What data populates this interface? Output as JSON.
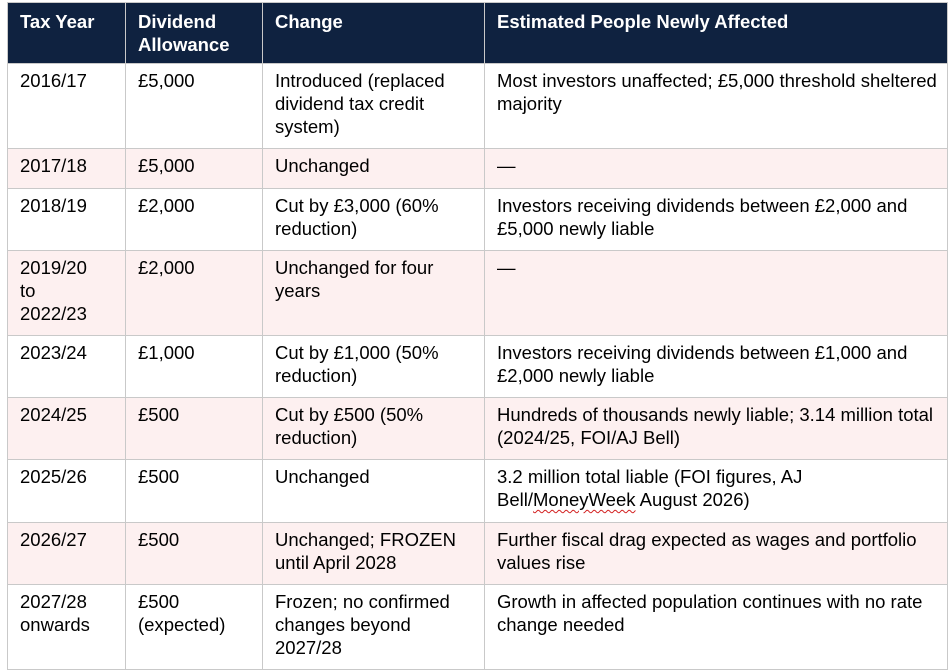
{
  "table": {
    "headers": [
      "Tax Year",
      "Dividend Allowance",
      "Change",
      "Estimated People Newly Affected"
    ],
    "rows": [
      {
        "tax_year": "2016/17",
        "allowance": "£5,000",
        "change": "Introduced (replaced dividend tax credit system)",
        "affected": "Most investors unaffected; £5,000 threshold sheltered majority"
      },
      {
        "tax_year": "2017/18",
        "allowance": "£5,000",
        "change": "Unchanged",
        "affected": "—"
      },
      {
        "tax_year": "2018/19",
        "allowance": "£2,000",
        "change": "Cut by £3,000 (60% reduction)",
        "affected": "Investors receiving dividends between £2,000 and £5,000 newly liable"
      },
      {
        "tax_year": "2019/20 to 2022/23",
        "allowance": "£2,000",
        "change": "Unchanged for four years",
        "affected": "—"
      },
      {
        "tax_year": "2023/24",
        "allowance": "£1,000",
        "change": "Cut by £1,000 (50% reduction)",
        "affected": "Investors receiving dividends between £1,000 and £2,000 newly liable"
      },
      {
        "tax_year": "2024/25",
        "allowance": "£500",
        "change": "Cut by £500 (50% reduction)",
        "affected": "Hundreds of thousands newly liable; 3.14 million total (2024/25, FOI/AJ Bell)"
      },
      {
        "tax_year": "2025/26",
        "allowance": "£500",
        "change": "Unchanged",
        "affected_before": "3.2 million total liable (FOI figures, AJ Bell/",
        "affected_flagged": "MoneyWeek",
        "affected_after": " August 2026)"
      },
      {
        "tax_year": "2026/27",
        "allowance": "£500",
        "change": "Unchanged; FROZEN until April 2028",
        "affected": "Further fiscal drag expected as wages and portfolio values rise"
      },
      {
        "tax_year": "2027/28 onwards",
        "allowance": "£500 (expected)",
        "change": "Frozen; no confirmed changes beyond 2027/28",
        "affected": "Growth in affected population continues with no rate change needed"
      }
    ]
  },
  "colors": {
    "header_bg": "#0f2240",
    "header_text": "#ffffff",
    "stripe": "#fdf0f0",
    "border": "#c9c9c9",
    "spellcheck": "#d22020"
  }
}
